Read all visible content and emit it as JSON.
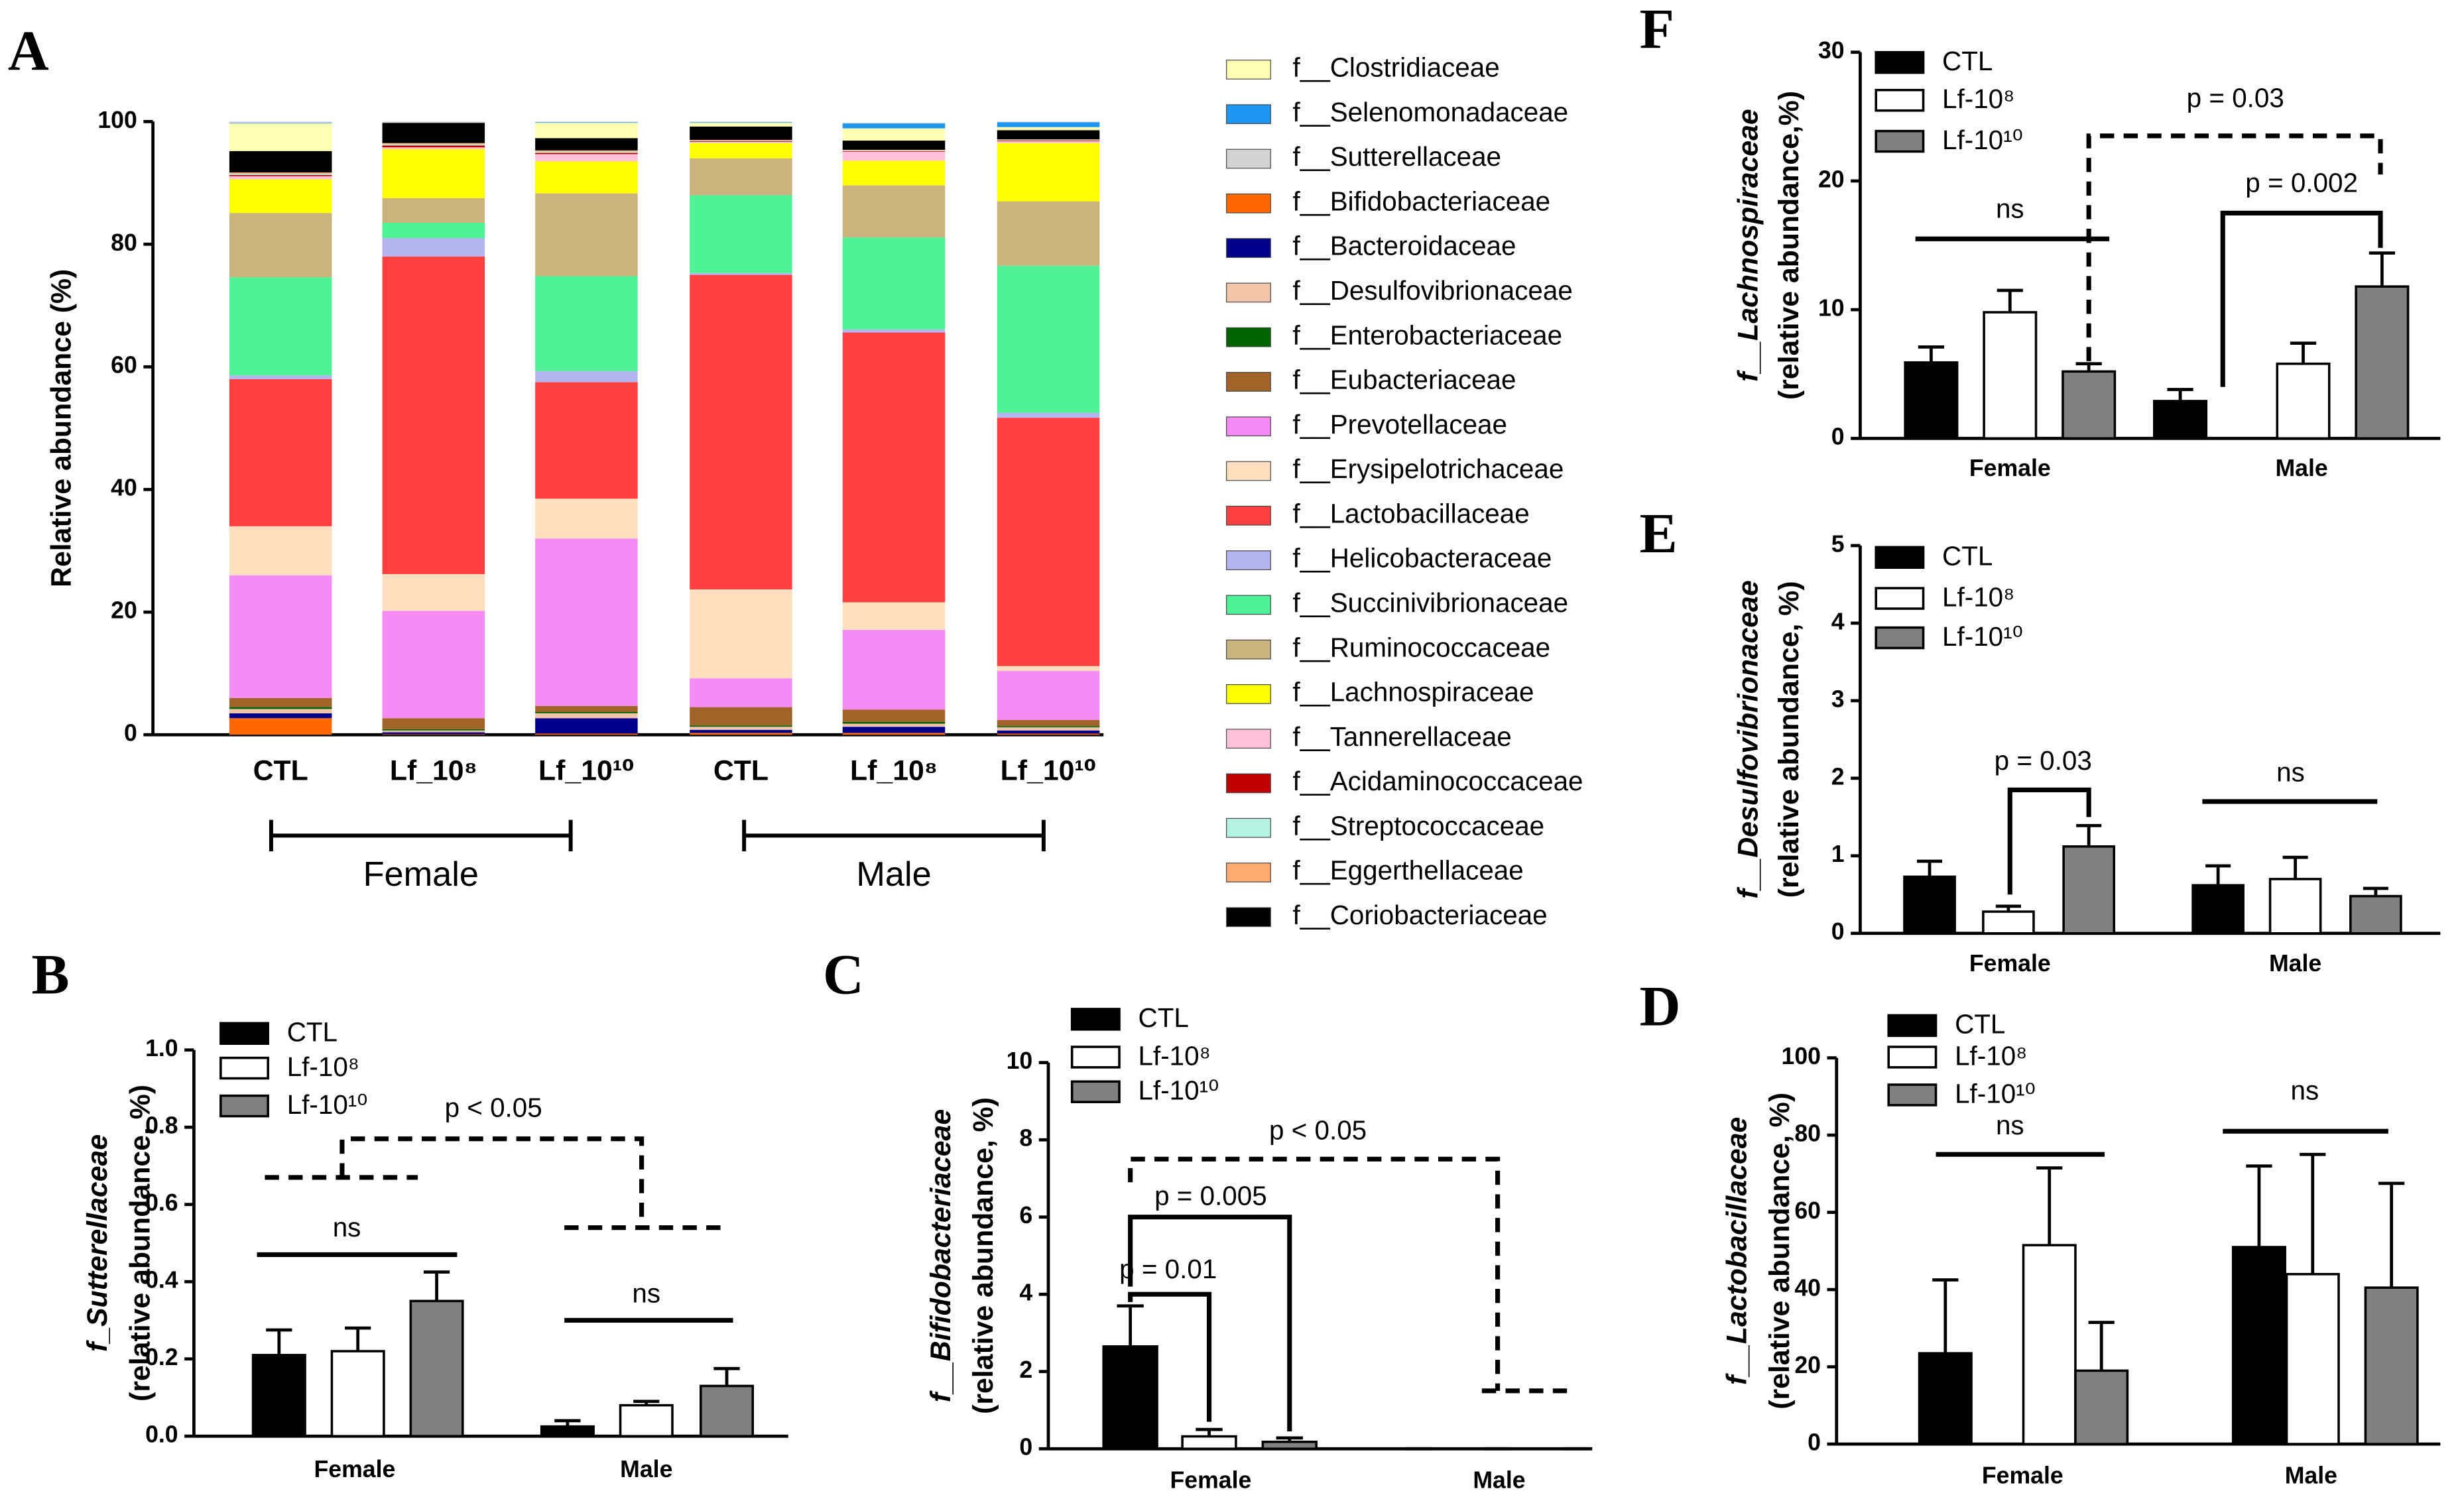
{
  "chart_data": [
    {
      "type": "stacked_bar",
      "title": "A",
      "ylabel": "Relative abundance (%)",
      "categories": [
        "CTL",
        "Lf_10⁸",
        "Lf_10¹⁰",
        "CTL",
        "Lf_10⁸",
        "Lf_10¹⁰"
      ],
      "groups": [
        "Female",
        "Male"
      ],
      "ylim": [
        0,
        100
      ],
      "yticks": [
        0,
        20,
        40,
        60,
        80,
        100
      ],
      "series": [
        {
          "name": "f__Clostridiaceae",
          "color": "#ffffb3",
          "values": [
            4.5,
            0,
            2.5,
            0.6,
            2,
            0.5
          ]
        },
        {
          "name": "f__Selenomonadaceae",
          "color": "#1e96f0",
          "values": [
            0.1,
            0,
            0.1,
            0.1,
            0.8,
            0.8
          ]
        },
        {
          "name": "f__Sutterellaceae",
          "color": "#d3d3d3",
          "values": [
            0.2,
            0.2,
            0.1,
            0.1,
            0.1,
            0.1
          ]
        },
        {
          "name": "f__Bifidobacteriaceae",
          "color": "#ff6a00",
          "values": [
            2.7,
            0.1,
            0.2,
            0.3,
            0.3,
            0.2
          ]
        },
        {
          "name": "f__Bacteroidaceae",
          "color": "#00008b",
          "values": [
            0.8,
            0.3,
            2.5,
            0.5,
            1,
            0.5
          ]
        },
        {
          "name": "f__Desulfovibrionaceae",
          "color": "#f2c4aa",
          "values": [
            0.7,
            0.3,
            0.8,
            0.5,
            0.5,
            0.5
          ]
        },
        {
          "name": "f__Enterobacteriaceae",
          "color": "#006400",
          "values": [
            0.3,
            0.2,
            0.2,
            0.2,
            0.3,
            0.2
          ]
        },
        {
          "name": "f__Eubacteriaceae",
          "color": "#a0642a",
          "values": [
            1.5,
            1.8,
            1,
            3,
            2,
            1
          ]
        },
        {
          "name": "f__Prevotellaceae",
          "color": "#f58cf5",
          "values": [
            20,
            17.5,
            27.3,
            4.7,
            13,
            8
          ]
        },
        {
          "name": "f__Erysipelotrichaceae",
          "color": "#ffdfbf",
          "values": [
            8,
            6,
            6.5,
            14.5,
            4.5,
            0.8
          ]
        },
        {
          "name": "f__Lactobacillaceae",
          "color": "#ff4040",
          "values": [
            24,
            51.8,
            19,
            51.3,
            44,
            40.5
          ]
        },
        {
          "name": "f__Helicobacteraceae",
          "color": "#b4b4f0",
          "values": [
            0.6,
            3,
            1.8,
            0.3,
            0.5,
            0.8
          ]
        },
        {
          "name": "f__Succinivibrionaceae",
          "color": "#50f296",
          "values": [
            16,
            2.5,
            15.5,
            12.7,
            15,
            24
          ]
        },
        {
          "name": "f__Ruminococcaceae",
          "color": "#c8b47c",
          "values": [
            10.5,
            4,
            13.5,
            6,
            8.5,
            10.5
          ]
        },
        {
          "name": "f__Lachnospiraceae",
          "color": "#ffff00",
          "values": [
            5.5,
            8,
            5.2,
            2.5,
            4,
            9.5
          ]
        },
        {
          "name": "f__Tannerellaceae",
          "color": "#ffc2da",
          "values": [
            0.5,
            0.3,
            1.2,
            0.2,
            1.5,
            0.3
          ]
        },
        {
          "name": "f__Acidaminococcaceae",
          "color": "#c00000",
          "values": [
            0.2,
            0.3,
            0.2,
            0.1,
            0.1,
            0.1
          ]
        },
        {
          "name": "f__Streptococcaceae",
          "color": "#b4f2e2",
          "values": [
            0.2,
            0.2,
            0.2,
            0.1,
            0.1,
            0.1
          ]
        },
        {
          "name": "f__Eggerthellaceae",
          "color": "#ffaa70",
          "values": [
            0.2,
            0.2,
            0.2,
            0.1,
            0.1,
            0.1
          ]
        },
        {
          "name": "f__Coriobacteriaceae",
          "color": "#000000",
          "values": [
            3.5,
            3.3,
            2,
            2.2,
            1.5,
            1.5
          ]
        }
      ]
    },
    {
      "type": "grouped_bar",
      "title": "F",
      "ylabel": [
        "f__Lachnospiraceae",
        "(relative abundance,%)"
      ],
      "categories": [
        "Female",
        "Male"
      ],
      "ylim": [
        0,
        30
      ],
      "yticks": [
        0,
        10,
        20,
        30
      ],
      "series": [
        {
          "name": "CTL",
          "color": "#000000",
          "values": [
            5.9,
            2.9
          ],
          "errors": [
            1.2,
            0.9
          ]
        },
        {
          "name": "Lf-10⁸",
          "color": "#ffffff",
          "values": [
            9.8,
            5.8
          ],
          "errors": [
            1.7,
            1.6
          ]
        },
        {
          "name": "Lf-10¹⁰",
          "color": "#808080",
          "values": [
            5.2,
            11.8
          ],
          "errors": [
            0.6,
            2.6
          ]
        }
      ],
      "annotations": [
        "ns",
        "p = 0.002",
        "p = 0.03"
      ]
    },
    {
      "type": "grouped_bar",
      "title": "E",
      "ylabel": [
        "f__Desulfovibrionaceae",
        "(relative abundance, %)"
      ],
      "categories": [
        "Female",
        "Male"
      ],
      "ylim": [
        0,
        5
      ],
      "yticks": [
        0,
        1,
        2,
        3,
        4,
        5
      ],
      "series": [
        {
          "name": "CTL",
          "color": "#000000",
          "values": [
            0.73,
            0.62
          ],
          "errors": [
            0.2,
            0.25
          ]
        },
        {
          "name": "Lf-10⁸",
          "color": "#ffffff",
          "values": [
            0.28,
            0.7
          ],
          "errors": [
            0.07,
            0.28
          ]
        },
        {
          "name": "Lf-10¹⁰",
          "color": "#808080",
          "values": [
            1.12,
            0.48
          ],
          "errors": [
            0.27,
            0.1
          ]
        }
      ],
      "annotations": [
        "p = 0.03",
        "ns"
      ]
    },
    {
      "type": "grouped_bar",
      "title": "B",
      "ylabel": [
        "f_Sutterellaceae",
        "(relative abundance, %)"
      ],
      "categories": [
        "Female",
        "Male"
      ],
      "ylim": [
        0,
        1
      ],
      "yticks": [
        {
          "value": 0,
          "label": "0.0"
        },
        0.2,
        0.4,
        0.6,
        0.8,
        {
          "value": 1,
          "label": "1.0"
        }
      ],
      "series": [
        {
          "name": "CTL",
          "color": "#000000",
          "values": [
            0.21,
            0.025
          ],
          "errors": [
            0.065,
            0.015
          ]
        },
        {
          "name": "Lf-10⁸",
          "color": "#ffffff",
          "values": [
            0.22,
            0.08
          ],
          "errors": [
            0.06,
            0.01
          ]
        },
        {
          "name": "Lf-10¹⁰",
          "color": "#808080",
          "values": [
            0.35,
            0.13
          ],
          "errors": [
            0.075,
            0.045
          ]
        }
      ],
      "annotations": [
        "ns",
        "ns",
        "p < 0.05"
      ]
    },
    {
      "type": "grouped_bar",
      "title": "C",
      "ylabel": [
        "f__Bifidobacteriaceae",
        "(relative abundance, %)"
      ],
      "categories": [
        "Female",
        "Male"
      ],
      "ylim": [
        0,
        10
      ],
      "yticks": [
        0,
        2,
        4,
        6,
        8,
        10
      ],
      "series": [
        {
          "name": "CTL",
          "color": "#000000",
          "values": [
            2.65,
            0
          ],
          "errors": [
            1.05,
            0
          ]
        },
        {
          "name": "Lf-10⁸",
          "color": "#ffffff",
          "values": [
            0.32,
            0
          ],
          "errors": [
            0.18,
            0
          ]
        },
        {
          "name": "Lf-10¹⁰",
          "color": "#808080",
          "values": [
            0.18,
            0
          ],
          "errors": [
            0.1,
            0
          ]
        }
      ],
      "annotations": [
        "p = 0.01",
        "p = 0.005",
        "p < 0.05"
      ]
    },
    {
      "type": "grouped_bar",
      "title": "D",
      "ylabel": [
        "f__Lactobacillaceae",
        "(relative abundance, %)"
      ],
      "categories": [
        "Female",
        "Male"
      ],
      "ylim": [
        0,
        100
      ],
      "yticks": [
        0,
        20,
        40,
        60,
        80,
        100
      ],
      "series": [
        {
          "name": "CTL",
          "color": "#000000",
          "values": [
            23.5,
            51
          ],
          "errors": [
            19,
            21
          ]
        },
        {
          "name": "Lf-10⁸",
          "color": "#ffffff",
          "values": [
            51.5,
            44
          ],
          "errors": [
            20,
            31
          ]
        },
        {
          "name": "Lf-10¹⁰",
          "color": "#808080",
          "values": [
            19,
            40.5
          ],
          "errors": [
            12.5,
            27
          ]
        }
      ],
      "annotations": [
        "ns",
        "ns"
      ]
    }
  ]
}
